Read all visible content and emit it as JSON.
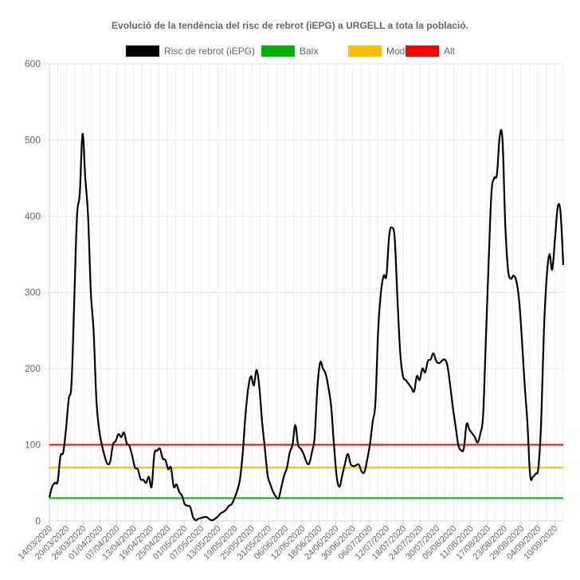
{
  "chart_data": {
    "type": "line",
    "title": "Evolució de la tendència del risc de rebrot (iEPG) a URGELL a tota la població.",
    "xlabel": "",
    "ylabel": "",
    "ylim": [
      0,
      600
    ],
    "yticks": [
      0,
      100,
      200,
      300,
      400,
      500,
      600
    ],
    "grid": true,
    "legend_position": "top",
    "xtick_labels": [
      "14/03/2020",
      "20/03/2020",
      "26/03/2020",
      "01/04/2020",
      "07/04/2020",
      "13/04/2020",
      "19/04/2020",
      "25/04/2020",
      "01/05/2020",
      "07/05/2020",
      "13/05/2020",
      "19/05/2020",
      "25/05/2020",
      "31/05/2020",
      "06/06/2020",
      "12/06/2020",
      "18/06/2020",
      "24/06/2020",
      "30/06/2020",
      "06/07/2020",
      "12/07/2020",
      "18/07/2020",
      "24/07/2020",
      "30/07/2020",
      "05/08/2020",
      "11/08/2020",
      "17/08/2020",
      "23/08/2020",
      "29/08/2020",
      "04/09/2020",
      "10/09/2020"
    ],
    "x_start": "14/03/2020",
    "x_end": "13/09/2020",
    "series": [
      {
        "name": "Risc de rebrot (iEPG)",
        "color": "#000000",
        "values": [
          31,
          45,
          50,
          52,
          85,
          90,
          120,
          160,
          180,
          290,
          400,
          430,
          508,
          450,
          400,
          300,
          250,
          160,
          120,
          100,
          85,
          75,
          78,
          100,
          105,
          114,
          110,
          116,
          102,
          98,
          85,
          70,
          68,
          55,
          54,
          50,
          58,
          45,
          88,
          92,
          95,
          82,
          80,
          68,
          70,
          45,
          48,
          38,
          33,
          22,
          20,
          18,
          5,
          1,
          3,
          4,
          5,
          5,
          2,
          1,
          3,
          6,
          10,
          12,
          15,
          20,
          22,
          30,
          40,
          55,
          90,
          140,
          175,
          190,
          178,
          198,
          175,
          130,
          95,
          60,
          48,
          38,
          32,
          30,
          45,
          60,
          70,
          90,
          100,
          126,
          100,
          95,
          88,
          78,
          75,
          90,
          110,
          175,
          208,
          200,
          193,
          175,
          150,
          100,
          58,
          45,
          60,
          75,
          88,
          75,
          72,
          73,
          74,
          65,
          64,
          80,
          100,
          130,
          155,
          250,
          300,
          322,
          322,
          375,
          385,
          370,
          290,
          220,
          190,
          185,
          180,
          175,
          170,
          190,
          185,
          200,
          195,
          210,
          212,
          220,
          210,
          207,
          210,
          212,
          205,
          180,
          150,
          125,
          100,
          93,
          95,
          127,
          120,
          115,
          110,
          103,
          115,
          140,
          240,
          340,
          430,
          450,
          455,
          505,
          500,
          390,
          330,
          318,
          322,
          315,
          290,
          240,
          180,
          130,
          60,
          58,
          62,
          70,
          130,
          250,
          320,
          350,
          330,
          370,
          412,
          405,
          336
        ]
      },
      {
        "name": "Baix",
        "color": "#00b300",
        "values": [
          30
        ]
      },
      {
        "name": "Moderat",
        "color": "#ffbf00",
        "values": [
          70
        ]
      },
      {
        "name": "Alt",
        "color": "#ff0000",
        "values": [
          100
        ]
      }
    ]
  }
}
